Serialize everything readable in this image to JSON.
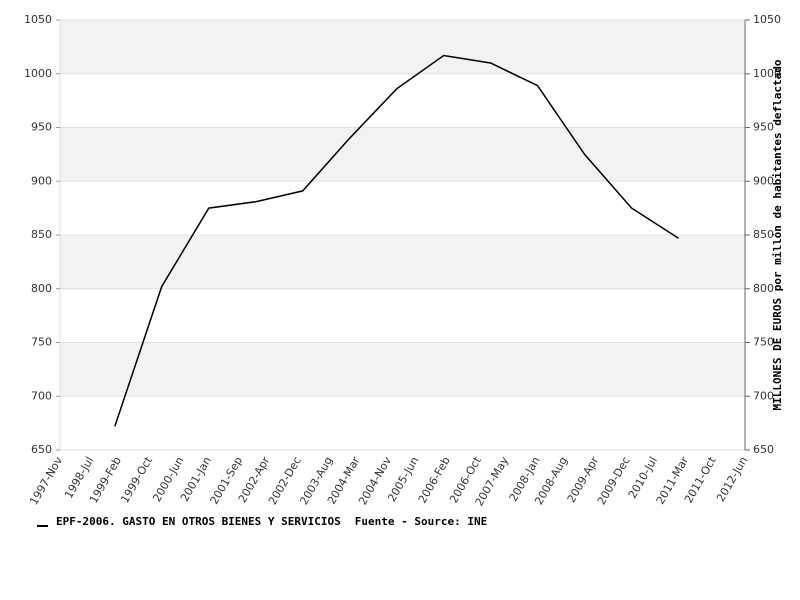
{
  "chart_data": {
    "type": "line",
    "x": [
      "1999-Jan",
      "2000-Jan",
      "2001-Jan",
      "2002-Jan",
      "2003-Jan",
      "2004-Jan",
      "2005-Jan",
      "2006-Jan",
      "2007-Jan",
      "2008-Jan",
      "2009-Jan",
      "2010-Jan",
      "2011-Jan"
    ],
    "series": [
      {
        "name": "EPF-2006. GASTO EN OTROS BIENES Y SERVICIOS",
        "color": "#000000",
        "values": [
          672,
          802,
          875,
          881,
          891,
          940,
          986,
          1017,
          1010,
          989,
          925,
          875,
          847
        ]
      }
    ],
    "source": "Fuente - Source: INE",
    "xlim": [
      "1997-Nov",
      "2012-Jun"
    ],
    "xticks": [
      "1997-Nov",
      "1998-Jul",
      "1999-Feb",
      "1999-Oct",
      "2000-Jun",
      "2001-Jan",
      "2001-Sep",
      "2002-Apr",
      "2002-Dec",
      "2003-Aug",
      "2004-Mar",
      "2004-Nov",
      "2005-Jun",
      "2006-Feb",
      "2006-Oct",
      "2007-May",
      "2008-Jan",
      "2008-Aug",
      "2009-Apr",
      "2009-Dec",
      "2010-Jul",
      "2011-Mar",
      "2011-Oct",
      "2012-Jun"
    ],
    "ylim": [
      650,
      1050
    ],
    "yticks": [
      650,
      700,
      750,
      800,
      850,
      900,
      950,
      1000,
      1050
    ],
    "y2lim": [
      650,
      1050
    ],
    "y2ticks": [
      650,
      700,
      750,
      800,
      850,
      900,
      950,
      1000,
      1050
    ],
    "y2label": "MILLONES DE EUROS por millón de habitantes deflactado",
    "band_color": "#f2f2f2",
    "grid": true,
    "legend": "bottom-left"
  }
}
